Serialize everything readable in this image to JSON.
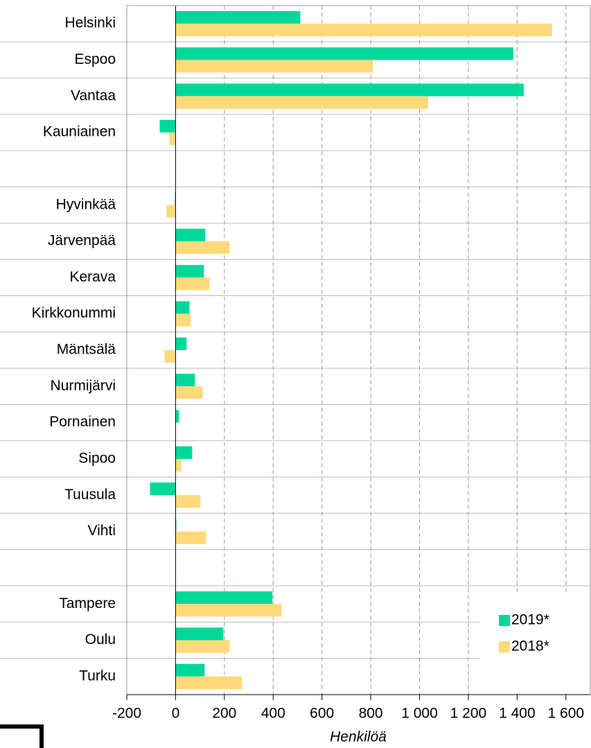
{
  "chart_data": {
    "type": "barh",
    "xlabel": "Henkilöä",
    "categories": [
      "Helsinki",
      "Espoo",
      "Vantaa",
      "Kauniainen",
      null,
      "Hyvinkää",
      "Järvenpää",
      "Kerava",
      "Kirkkonummi",
      "Mäntsälä",
      "Nurmijärvi",
      "Pornainen",
      "Sipoo",
      "Tuusula",
      "Vihti",
      null,
      "Tampere",
      "Oulu",
      "Turku"
    ],
    "series": [
      {
        "name": "2019*",
        "color": "#00d89a",
        "values": [
          511,
          1384,
          1427,
          -65,
          null,
          -3,
          122,
          116,
          57,
          45,
          79,
          14,
          68,
          -105,
          3,
          null,
          397,
          196,
          119
        ]
      },
      {
        "name": "2018*",
        "color": "#ffd97a",
        "values": [
          1543,
          809,
          1035,
          -26,
          null,
          -37,
          221,
          139,
          62,
          -45,
          111,
          0,
          23,
          102,
          125,
          null,
          434,
          221,
          272
        ]
      }
    ],
    "xlim": [
      -200,
      1700
    ],
    "xticks": [
      -200,
      0,
      200,
      400,
      600,
      800,
      {
        "value": 1000,
        "label": "1 000"
      },
      {
        "value": 1200,
        "label": "1 200"
      },
      {
        "value": 1400,
        "label": "1 400"
      },
      {
        "value": 1600,
        "label": "1 600"
      }
    ],
    "grid": true,
    "legend": "lower right"
  }
}
